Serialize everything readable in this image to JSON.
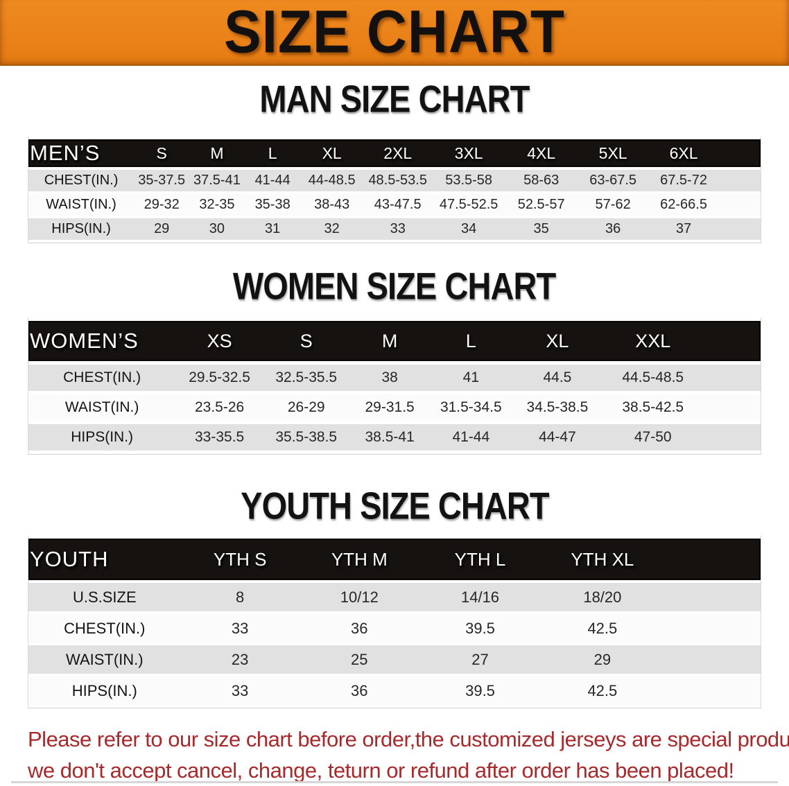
{
  "banner": {
    "title": "SIZE CHART",
    "bg_color": "#e8811c",
    "text_color": "#131110"
  },
  "sections": [
    {
      "title": "MAN SIZE CHART",
      "header_label": "MEN’S",
      "columns": [
        "S",
        "M",
        "L",
        "XL",
        "2XL",
        "3XL",
        "4XL",
        "5XL",
        "6XL"
      ],
      "rows": [
        {
          "label": "CHEST(IN.)",
          "values": [
            "35-37.5",
            "37.5-41",
            "41-44",
            "44-48.5",
            "48.5-53.5",
            "53.5-58",
            "58-63",
            "63-67.5",
            "67.5-72"
          ]
        },
        {
          "label": "WAIST(IN.)",
          "values": [
            "29-32",
            "32-35",
            "35-38",
            "38-43",
            "43-47.5",
            "47.5-52.5",
            "52.5-57",
            "57-62",
            "62-66.5"
          ]
        },
        {
          "label": "HIPS(IN.)",
          "values": [
            "29",
            "30",
            "31",
            "32",
            "33",
            "34",
            "35",
            "36",
            "37"
          ]
        }
      ]
    },
    {
      "title": "WOMEN SIZE CHART",
      "header_label": "WOMEN’S",
      "columns": [
        "XS",
        "S",
        "M",
        "L",
        "XL",
        "XXL"
      ],
      "rows": [
        {
          "label": "CHEST(IN.)",
          "values": [
            "29.5-32.5",
            "32.5-35.5",
            "38",
            "41",
            "44.5",
            "44.5-48.5"
          ]
        },
        {
          "label": "WAIST(IN.)",
          "values": [
            "23.5-26",
            "26-29",
            "29-31.5",
            "31.5-34.5",
            "34.5-38.5",
            "38.5-42.5"
          ]
        },
        {
          "label": "HIPS(IN.)",
          "values": [
            "33-35.5",
            "35.5-38.5",
            "38.5-41",
            "41-44",
            "44-47",
            "47-50"
          ]
        }
      ]
    },
    {
      "title": "YOUTH SIZE CHART",
      "header_label": "YOUTH",
      "columns": [
        "YTH S",
        "YTH M",
        "YTH L",
        "YTH XL"
      ],
      "rows": [
        {
          "label": "U.S.SIZE",
          "values": [
            "8",
            "10/12",
            "14/16",
            "18/20"
          ]
        },
        {
          "label": "CHEST(IN.)",
          "values": [
            "33",
            "36",
            "39.5",
            "42.5"
          ]
        },
        {
          "label": "WAIST(IN.)",
          "values": [
            "23",
            "25",
            "27",
            "29"
          ]
        },
        {
          "label": "HIPS(IN.)",
          "values": [
            "33",
            "36",
            "39.5",
            "42.5"
          ]
        }
      ]
    }
  ],
  "footer": {
    "line1": "Please refer to our size chart before order,the customized jerseys are special products,",
    "line2": "we don't accept cancel, change, teturn or refund after order has been placed!",
    "text_color": "#a8292c"
  },
  "colors": {
    "banner_orange": "#e8811c",
    "header_black": "#151210",
    "stripe_gray": "#e1e1e1",
    "stripe_white": "#fbfbfb",
    "disclaimer_red": "#a8292c"
  }
}
